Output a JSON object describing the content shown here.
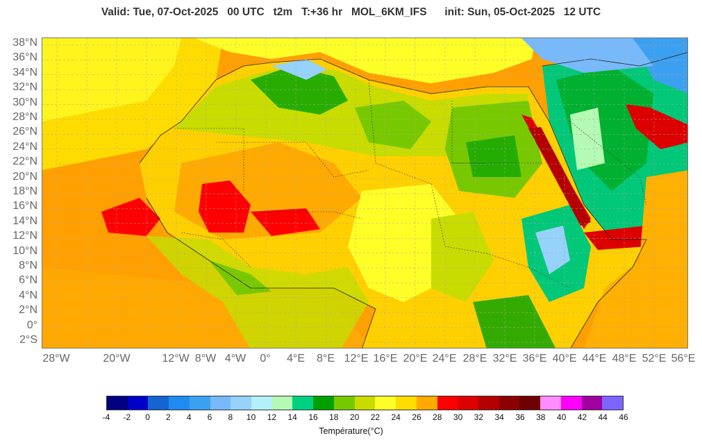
{
  "title": "Valid: Tue, 07-Oct-2025   00 UTC   t2m   T:+36 hr   MOL_6KM_IFS      init: Sun, 05-Oct-2025   12 UTC",
  "lat_labels": [
    "38°N",
    "36°N",
    "34°N",
    "32°N",
    "30°N",
    "28°N",
    "26°N",
    "24°N",
    "22°N",
    "20°N",
    "18°N",
    "16°N",
    "14°N",
    "12°N",
    "10°N",
    "8°N",
    "6°N",
    "4°N",
    "2°N",
    "0°",
    "2°S"
  ],
  "lon_labels": [
    "28°W",
    "20°W",
    "12°W",
    "8°W",
    "4°W",
    "0°",
    "4°E",
    "8°E",
    "12°E",
    "16°E",
    "20°E",
    "24°E",
    "28°E",
    "32°E",
    "36°E",
    "40°E",
    "44°E",
    "48°E",
    "52°E",
    "56°E"
  ],
  "legend": {
    "label": "Température(°C)",
    "ticks": [
      "-4",
      "-2",
      "0",
      "2",
      "4",
      "6",
      "8",
      "10",
      "12",
      "14",
      "16",
      "18",
      "20",
      "22",
      "24",
      "26",
      "28",
      "30",
      "32",
      "34",
      "36",
      "38",
      "40",
      "42",
      "44",
      "46"
    ],
    "colors": [
      "#000080",
      "#0000c8",
      "#1464d2",
      "#1e8cf0",
      "#3ca0f0",
      "#78b9fa",
      "#96d2fa",
      "#b4f0fa",
      "#b4fab4",
      "#00d282",
      "#00a000",
      "#78c800",
      "#c8dc00",
      "#ffff28",
      "#ffdc00",
      "#ffaa00",
      "#ff0000",
      "#dc0000",
      "#b40000",
      "#8c0000",
      "#6e0000",
      "#ff8cff",
      "#ff00ff",
      "#a000a0",
      "#7e64ff"
    ]
  },
  "map": {
    "ocean_color": "#ff9f00",
    "land_base_color": "#ffd000",
    "grid": "dashed"
  }
}
